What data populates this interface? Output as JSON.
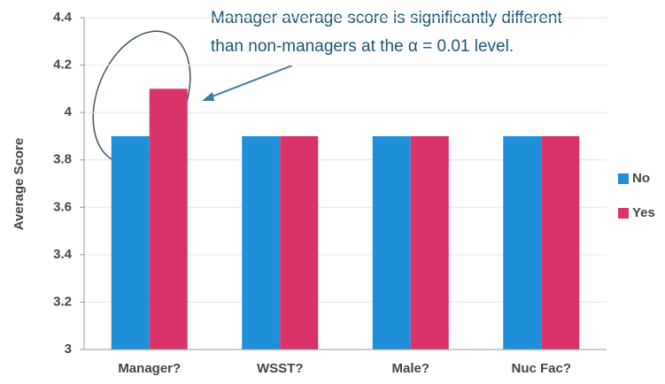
{
  "chart_data": {
    "type": "bar",
    "ylabel": "Average Score",
    "annotation": [
      "Manager average score is significantly different",
      "than non-managers at the α = 0.01 level."
    ],
    "categories": [
      "Manager?",
      "WSST?",
      "Male?",
      "Nuc Fac?"
    ],
    "series": [
      {
        "name": "No",
        "color": "#1e8fd8",
        "values": [
          3.9,
          3.9,
          3.9,
          3.9
        ]
      },
      {
        "name": "Yes",
        "color": "#d9336a",
        "values": [
          4.1,
          3.9,
          3.9,
          3.9
        ]
      }
    ],
    "ylim": [
      3,
      4.4
    ],
    "yticks": [
      3,
      3.2,
      3.4,
      3.6,
      3.8,
      4,
      4.2,
      4.4
    ],
    "grid": true,
    "legend": "right"
  }
}
